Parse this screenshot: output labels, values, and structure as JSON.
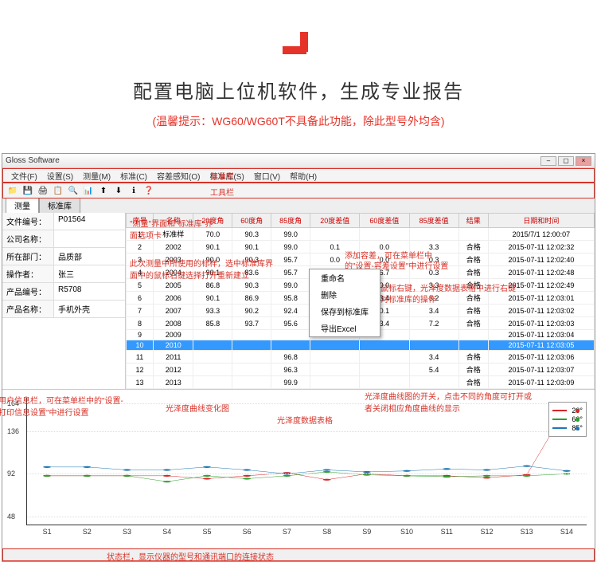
{
  "hero": {
    "title": "配置电脑上位机软件，生成专业报告",
    "subtitle": "(温馨提示：WG60/WG60T不具备此功能，除此型号外均含)"
  },
  "app": {
    "title": "Gloss Software",
    "menubar": [
      "文件(F)",
      "设置(S)",
      "测量(M)",
      "标准(C)",
      "容差感知(O)",
      "标准库(S)",
      "窗口(V)",
      "帮助(H)"
    ],
    "toolbar_icons": [
      "📁",
      "💾",
      "🖨",
      "📋",
      "🔍",
      "📊",
      "⬆",
      "⬇",
      "ℹ",
      "❓"
    ],
    "tabs": [
      "测量",
      "标准库"
    ],
    "info": [
      {
        "label": "文件编号：",
        "value": "P01564"
      },
      {
        "label": "公司名称：",
        "value": ""
      },
      {
        "label": "所在部门：",
        "value": "品质部"
      },
      {
        "label": "操作者：",
        "value": "张三"
      },
      {
        "label": "产品编号：",
        "value": "R5708"
      },
      {
        "label": "产品名称：",
        "value": "手机外壳"
      }
    ],
    "grid": {
      "headers": [
        "序号",
        "名称",
        "20度角",
        "60度角",
        "85度角",
        "20度差值",
        "60度差值",
        "85度差值",
        "结果",
        "日期和时间"
      ],
      "rows": [
        [
          "1",
          "标准样",
          "70.0",
          "90.3",
          "99.0",
          "",
          "",
          "",
          "",
          "2015/7/1 12:00:07"
        ],
        [
          "2",
          "2002",
          "90.1",
          "90.1",
          "99.0",
          "0.1",
          "0.0",
          "3.3",
          "合格",
          "2015-07-11 12:02:32"
        ],
        [
          "3",
          "2003",
          "90.0",
          "90.3",
          "95.7",
          "0.0",
          "0.0",
          "0.3",
          "合格",
          "2015-07-11 12:02:40"
        ],
        [
          "4",
          "2004",
          "90.1",
          "83.6",
          "95.7",
          "0.1",
          "6.7",
          "0.3",
          "合格",
          "2015-07-11 12:02:48"
        ],
        [
          "5",
          "2005",
          "86.8",
          "90.3",
          "99.0",
          "3.3",
          "0.0",
          "3.3",
          "合格",
          "2015-07-11 12:02:49"
        ],
        [
          "6",
          "2006",
          "90.1",
          "86.9",
          "95.8",
          "0.1",
          "3.4",
          "3.2",
          "合格",
          "2015-07-11 12:03:01"
        ],
        [
          "7",
          "2007",
          "93.3",
          "90.2",
          "92.4",
          "3.3",
          "0.1",
          "3.4",
          "合格",
          "2015-07-11 12:03:02"
        ],
        [
          "8",
          "2008",
          "85.8",
          "93.7",
          "95.6",
          "4.3",
          "3.4",
          "7.2",
          "合格",
          "2015-07-11 12:03:03"
        ],
        [
          "9",
          "2009",
          "",
          "",
          "",
          "",
          "",
          "",
          "",
          "2015-07-11 12:03:04"
        ],
        [
          "10",
          "2010",
          "",
          "",
          "",
          "",
          "",
          "",
          "",
          "2015-07-11 12:03:05"
        ],
        [
          "11",
          "2011",
          "",
          "",
          "96.8",
          "",
          "",
          "3.4",
          "合格",
          "2015-07-11 12:03:06"
        ],
        [
          "12",
          "2012",
          "",
          "",
          "96.3",
          "",
          "",
          "5.4",
          "合格",
          "2015-07-11 12:03:07"
        ],
        [
          "13",
          "2013",
          "",
          "",
          "99.9",
          "",
          "",
          "",
          "合格",
          "2015-07-11 12:03:09"
        ]
      ],
      "selected_row": 9
    },
    "context_menu": [
      "重命名",
      "删除",
      "保存到标准库",
      "导出Excel"
    ],
    "chart": {
      "yticks": [
        48,
        92,
        136,
        164
      ],
      "ylim": [
        40,
        170
      ],
      "xticks": [
        "S1",
        "S2",
        "S3",
        "S4",
        "S5",
        "S6",
        "S7",
        "S8",
        "S9",
        "S10",
        "S11",
        "S12",
        "S13",
        "S14"
      ],
      "series": [
        {
          "name": "20°",
          "color": "#d62728",
          "data": [
            90,
            90,
            90,
            90,
            87,
            90,
            93,
            86,
            92,
            90,
            90,
            88,
            91,
            160
          ]
        },
        {
          "name": "60°",
          "color": "#2ca02c",
          "data": [
            90,
            90,
            90,
            84,
            90,
            87,
            90,
            94,
            91,
            90,
            89,
            90,
            90,
            92
          ]
        },
        {
          "name": "85°",
          "color": "#1f77b4",
          "data": [
            99,
            99,
            96,
            96,
            99,
            96,
            92,
            96,
            94,
            95,
            97,
            96,
            100,
            95
          ]
        }
      ]
    },
    "statusbar": ""
  },
  "annotations": {
    "menubar_label": "菜单栏",
    "toolbar_label": "工具栏",
    "tab_note": "\"测量\"界面和\"标准库\"界面选项卡",
    "grid_note": "此次测量中所使用的标样，选中标准库界面中的鼠标右键选择打开重新建立",
    "user_note": "用户信息栏，可在菜单栏中的\"设置-打印信息设置\"中进行设置",
    "curve_note": "光泽度曲线变化图",
    "data_note": "光泽度数据表格",
    "menu_note1": "添加容差，可在菜单栏中",
    "menu_note2": "的\"设置-容差设置\"中进行设置",
    "rename_note": "鼠标右键，光泽度数据表格中进行右键",
    "std_note": "对标准库的操作",
    "legend_note": "光泽度曲线图的开关，点击不同的角度可打开或者关闭相应角度曲线的显示",
    "status_note": "状态栏，显示仪器的型号和通讯端口的连接状态"
  }
}
